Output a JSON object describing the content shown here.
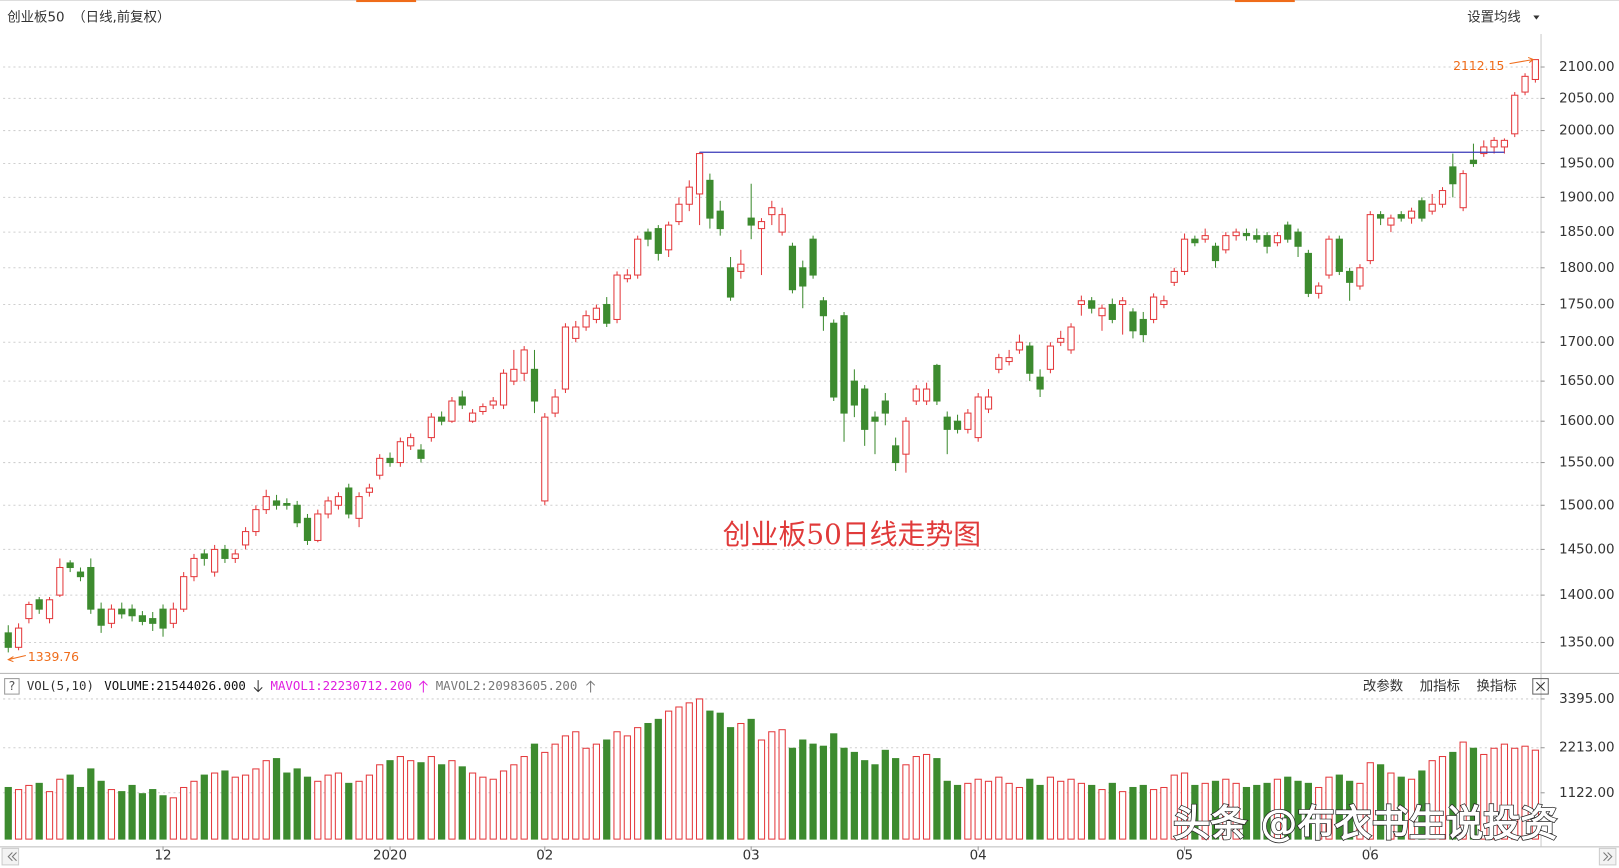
{
  "toolbar": {
    "ma_button": "设置均线",
    "help_icon": "?",
    "vol_name": "VOL(5,10)",
    "volume_text": "VOLUME:21544026.000",
    "mavol1_text": "MAVOL1:22230712.200",
    "mavol2_text": "MAVOL2:20983605.200",
    "buttons": [
      "改参数",
      "加指标",
      "换指标"
    ]
  },
  "chart_data": {
    "type": "candlestick",
    "title": "创业板50",
    "subtitle": "（日线,前复权）",
    "annotation": "创业板50日线走势图",
    "watermark": "头条 @布衣书生说投资",
    "log_scale": true,
    "grid": true,
    "up_color": "#e4393c",
    "down_color": "#3d8b2f",
    "annotation_color": "#e03a3a",
    "extreme_label_color": "#ef6c1a",
    "reference_line": {
      "value": 1967,
      "color": "#3a3ab8"
    },
    "categories": [
      null,
      null,
      null,
      null,
      null,
      null,
      null,
      null,
      null,
      null,
      null,
      null,
      null,
      null,
      null,
      "12",
      null,
      null,
      null,
      null,
      null,
      null,
      null,
      null,
      null,
      null,
      null,
      null,
      null,
      null,
      null,
      null,
      null,
      null,
      null,
      null,
      null,
      "2020",
      null,
      null,
      null,
      null,
      null,
      null,
      null,
      null,
      null,
      null,
      null,
      null,
      null,
      null,
      "02",
      null,
      null,
      null,
      null,
      null,
      null,
      null,
      null,
      null,
      null,
      null,
      null,
      null,
      null,
      null,
      null,
      null,
      null,
      null,
      "03",
      null,
      null,
      null,
      null,
      null,
      null,
      null,
      null,
      null,
      null,
      null,
      null,
      null,
      null,
      null,
      null,
      null,
      null,
      null,
      null,
      null,
      "04",
      null,
      null,
      null,
      null,
      null,
      null,
      null,
      null,
      null,
      null,
      null,
      null,
      null,
      null,
      null,
      null,
      null,
      null,
      null,
      "05",
      null,
      null,
      null,
      null,
      null,
      null,
      null,
      null,
      null,
      null,
      null,
      null,
      null,
      null,
      null,
      null,
      null,
      "06",
      null,
      null,
      null,
      null,
      null,
      null,
      null,
      null,
      null,
      null,
      null,
      null,
      null,
      null,
      null,
      null
    ],
    "open": [
      1360,
      1345,
      1375,
      1395,
      1375,
      1400,
      1435,
      1425,
      1430,
      1385,
      1370,
      1385,
      1385,
      1378,
      1375,
      1385,
      1370,
      1385,
      1420,
      1445,
      1425,
      1450,
      1440,
      1455,
      1470,
      1495,
      1505,
      1502,
      1500,
      1485,
      1460,
      1490,
      1500,
      1520,
      1485,
      1515,
      1535,
      1555,
      1550,
      1570,
      1565,
      1580,
      1605,
      1600,
      1630,
      1600,
      1612,
      1620,
      1620,
      1650,
      1660,
      1665,
      1505,
      1610,
      1640,
      1705,
      1720,
      1730,
      1750,
      1730,
      1785,
      1790,
      1850,
      1855,
      1825,
      1865,
      1890,
      1905,
      1925,
      1880,
      1800,
      1795,
      1870,
      1855,
      1875,
      1850,
      1830,
      1800,
      1840,
      1755,
      1725,
      1735,
      1650,
      1640,
      1605,
      1625,
      1570,
      1560,
      1625,
      1625,
      1670,
      1605,
      1600,
      1590,
      1580,
      1615,
      1665,
      1675,
      1690,
      1695,
      1655,
      1665,
      1700,
      1690,
      1750,
      1755,
      1735,
      1750,
      1750,
      1740,
      1730,
      1730,
      1750,
      1780,
      1795,
      1840,
      1840,
      1830,
      1825,
      1845,
      1848,
      1845,
      1845,
      1835,
      1860,
      1850,
      1820,
      1765,
      1790,
      1840,
      1795,
      1775,
      1810,
      1875,
      1860,
      1875,
      1870,
      1895,
      1880,
      1890,
      1945,
      1885,
      1955,
      1965,
      1975,
      1975,
      1995,
      2060,
      2080
    ],
    "high": [
      1368,
      1370,
      1393,
      1398,
      1398,
      1440,
      1438,
      1430,
      1440,
      1392,
      1390,
      1392,
      1390,
      1383,
      1382,
      1390,
      1392,
      1425,
      1445,
      1450,
      1455,
      1455,
      1450,
      1475,
      1500,
      1518,
      1512,
      1508,
      1505,
      1490,
      1495,
      1510,
      1515,
      1525,
      1515,
      1525,
      1560,
      1562,
      1580,
      1585,
      1572,
      1610,
      1612,
      1630,
      1638,
      1615,
      1622,
      1630,
      1665,
      1690,
      1695,
      1690,
      1610,
      1640,
      1725,
      1728,
      1742,
      1750,
      1760,
      1795,
      1798,
      1845,
      1855,
      1860,
      1865,
      1900,
      1925,
      1967,
      1935,
      1895,
      1815,
      1825,
      1920,
      1870,
      1895,
      1885,
      1835,
      1810,
      1845,
      1760,
      1730,
      1740,
      1665,
      1645,
      1612,
      1635,
      1580,
      1605,
      1645,
      1648,
      1672,
      1612,
      1608,
      1615,
      1635,
      1640,
      1685,
      1690,
      1710,
      1700,
      1665,
      1700,
      1715,
      1725,
      1762,
      1760,
      1750,
      1758,
      1760,
      1745,
      1740,
      1765,
      1762,
      1800,
      1848,
      1845,
      1855,
      1835,
      1850,
      1855,
      1855,
      1855,
      1850,
      1850,
      1865,
      1855,
      1825,
      1780,
      1845,
      1845,
      1800,
      1805,
      1880,
      1880,
      1875,
      1880,
      1885,
      1900,
      1905,
      1915,
      1965,
      1940,
      1980,
      1985,
      1990,
      1988,
      2060,
      2090,
      2112.15
    ],
    "low": [
      1339.76,
      1342,
      1370,
      1380,
      1370,
      1398,
      1425,
      1415,
      1380,
      1360,
      1365,
      1375,
      1372,
      1368,
      1362,
      1356,
      1365,
      1382,
      1415,
      1432,
      1420,
      1435,
      1435,
      1450,
      1465,
      1490,
      1495,
      1495,
      1475,
      1455,
      1458,
      1485,
      1495,
      1485,
      1475,
      1510,
      1530,
      1545,
      1545,
      1565,
      1550,
      1575,
      1595,
      1598,
      1615,
      1598,
      1608,
      1615,
      1615,
      1645,
      1650,
      1610,
      1500,
      1605,
      1635,
      1700,
      1715,
      1725,
      1720,
      1725,
      1780,
      1785,
      1830,
      1810,
      1815,
      1860,
      1880,
      1860,
      1855,
      1845,
      1755,
      1785,
      1840,
      1790,
      1860,
      1845,
      1765,
      1745,
      1785,
      1715,
      1625,
      1575,
      1605,
      1570,
      1560,
      1595,
      1540,
      1538,
      1620,
      1620,
      1620,
      1560,
      1585,
      1585,
      1575,
      1610,
      1660,
      1670,
      1685,
      1650,
      1630,
      1660,
      1695,
      1685,
      1735,
      1738,
      1715,
      1725,
      1710,
      1705,
      1700,
      1725,
      1745,
      1775,
      1790,
      1830,
      1835,
      1800,
      1820,
      1838,
      1838,
      1835,
      1820,
      1830,
      1835,
      1815,
      1760,
      1758,
      1785,
      1790,
      1755,
      1770,
      1805,
      1860,
      1850,
      1865,
      1862,
      1865,
      1875,
      1885,
      1900,
      1880,
      1945,
      1960,
      1965,
      1965,
      1990,
      2055,
      2075
    ],
    "close": [
      1345,
      1365,
      1390,
      1385,
      1395,
      1430,
      1430,
      1420,
      1385,
      1368,
      1385,
      1380,
      1378,
      1372,
      1370,
      1365,
      1385,
      1420,
      1440,
      1440,
      1450,
      1440,
      1445,
      1470,
      1495,
      1510,
      1500,
      1500,
      1480,
      1460,
      1490,
      1505,
      1510,
      1490,
      1510,
      1520,
      1555,
      1550,
      1575,
      1580,
      1555,
      1605,
      1600,
      1625,
      1620,
      1610,
      1618,
      1625,
      1660,
      1665,
      1690,
      1625,
      1605,
      1630,
      1720,
      1720,
      1735,
      1745,
      1725,
      1790,
      1790,
      1840,
      1840,
      1820,
      1860,
      1890,
      1915,
      1965,
      1870,
      1855,
      1760,
      1805,
      1860,
      1865,
      1885,
      1875,
      1770,
      1775,
      1790,
      1735,
      1630,
      1610,
      1620,
      1590,
      1600,
      1610,
      1550,
      1600,
      1640,
      1640,
      1625,
      1590,
      1590,
      1610,
      1630,
      1630,
      1680,
      1680,
      1700,
      1660,
      1640,
      1695,
      1705,
      1720,
      1755,
      1745,
      1745,
      1730,
      1755,
      1715,
      1710,
      1760,
      1755,
      1795,
      1840,
      1835,
      1845,
      1810,
      1845,
      1850,
      1845,
      1840,
      1830,
      1845,
      1840,
      1830,
      1765,
      1775,
      1840,
      1795,
      1780,
      1800,
      1875,
      1870,
      1870,
      1870,
      1880,
      1870,
      1890,
      1910,
      1920,
      1935,
      1950,
      1975,
      1985,
      1985,
      2055,
      2085,
      2112
    ],
    "volume": [
      1250,
      1200,
      1300,
      1350,
      1150,
      1450,
      1550,
      1250,
      1700,
      1400,
      1200,
      1150,
      1300,
      1100,
      1200,
      1050,
      1000,
      1250,
      1400,
      1550,
      1600,
      1650,
      1500,
      1550,
      1700,
      1900,
      1950,
      1600,
      1700,
      1500,
      1400,
      1550,
      1600,
      1350,
      1400,
      1550,
      1800,
      1900,
      2000,
      1900,
      1850,
      2000,
      1800,
      1900,
      1750,
      1600,
      1500,
      1450,
      1650,
      1800,
      2000,
      2300,
      2100,
      2300,
      2500,
      2600,
      2200,
      2300,
      2400,
      2600,
      2500,
      2700,
      2800,
      2900,
      3100,
      3200,
      3300,
      3395,
      3100,
      3050,
      2700,
      2800,
      2900,
      2400,
      2600,
      2650,
      2200,
      2400,
      2300,
      2250,
      2550,
      2200,
      2100,
      1900,
      1800,
      2150,
      1950,
      1800,
      2000,
      2050,
      1950,
      1400,
      1300,
      1350,
      1450,
      1400,
      1500,
      1350,
      1250,
      1450,
      1300,
      1500,
      1400,
      1450,
      1350,
      1300,
      1200,
      1350,
      1150,
      1250,
      1300,
      1200,
      1250,
      1550,
      1600,
      1300,
      1350,
      1400,
      1450,
      1350,
      1250,
      1300,
      1350,
      1450,
      1500,
      1400,
      1350,
      1250,
      1500,
      1550,
      1400,
      1350,
      1850,
      1800,
      1600,
      1500,
      1450,
      1650,
      1900,
      2000,
      2100,
      2350,
      2200,
      2050,
      2200,
      2300,
      2200,
      2250,
      2154
    ],
    "ylim": [
      1323,
      2147
    ],
    "yticks": [
      {
        "value": 1350,
        "label": "1350.00"
      },
      {
        "value": 1400,
        "label": "1400.00"
      },
      {
        "value": 1450,
        "label": "1450.00"
      },
      {
        "value": 1500,
        "label": "1500.00"
      },
      {
        "value": 1550,
        "label": "1550.00"
      },
      {
        "value": 1600,
        "label": "1600.00"
      },
      {
        "value": 1650,
        "label": "1650.00"
      },
      {
        "value": 1700,
        "label": "1700.00"
      },
      {
        "value": 1750,
        "label": "1750.00"
      },
      {
        "value": 1800,
        "label": "1800.00"
      },
      {
        "value": 1850,
        "label": "1850.00"
      },
      {
        "value": 1900,
        "label": "1900.00"
      },
      {
        "value": 1950,
        "label": "1950.00"
      },
      {
        "value": 2000,
        "label": "2000.00"
      },
      {
        "value": 2050,
        "label": "2050.00"
      },
      {
        "value": 2100,
        "label": "2100.00"
      }
    ],
    "volume_ylim": [
      0,
      3450
    ],
    "volume_yticks": [
      {
        "value": 1122,
        "label": "1122.00"
      },
      {
        "value": 2213,
        "label": "2213.00"
      },
      {
        "value": 3395,
        "label": "3395.00"
      }
    ]
  }
}
